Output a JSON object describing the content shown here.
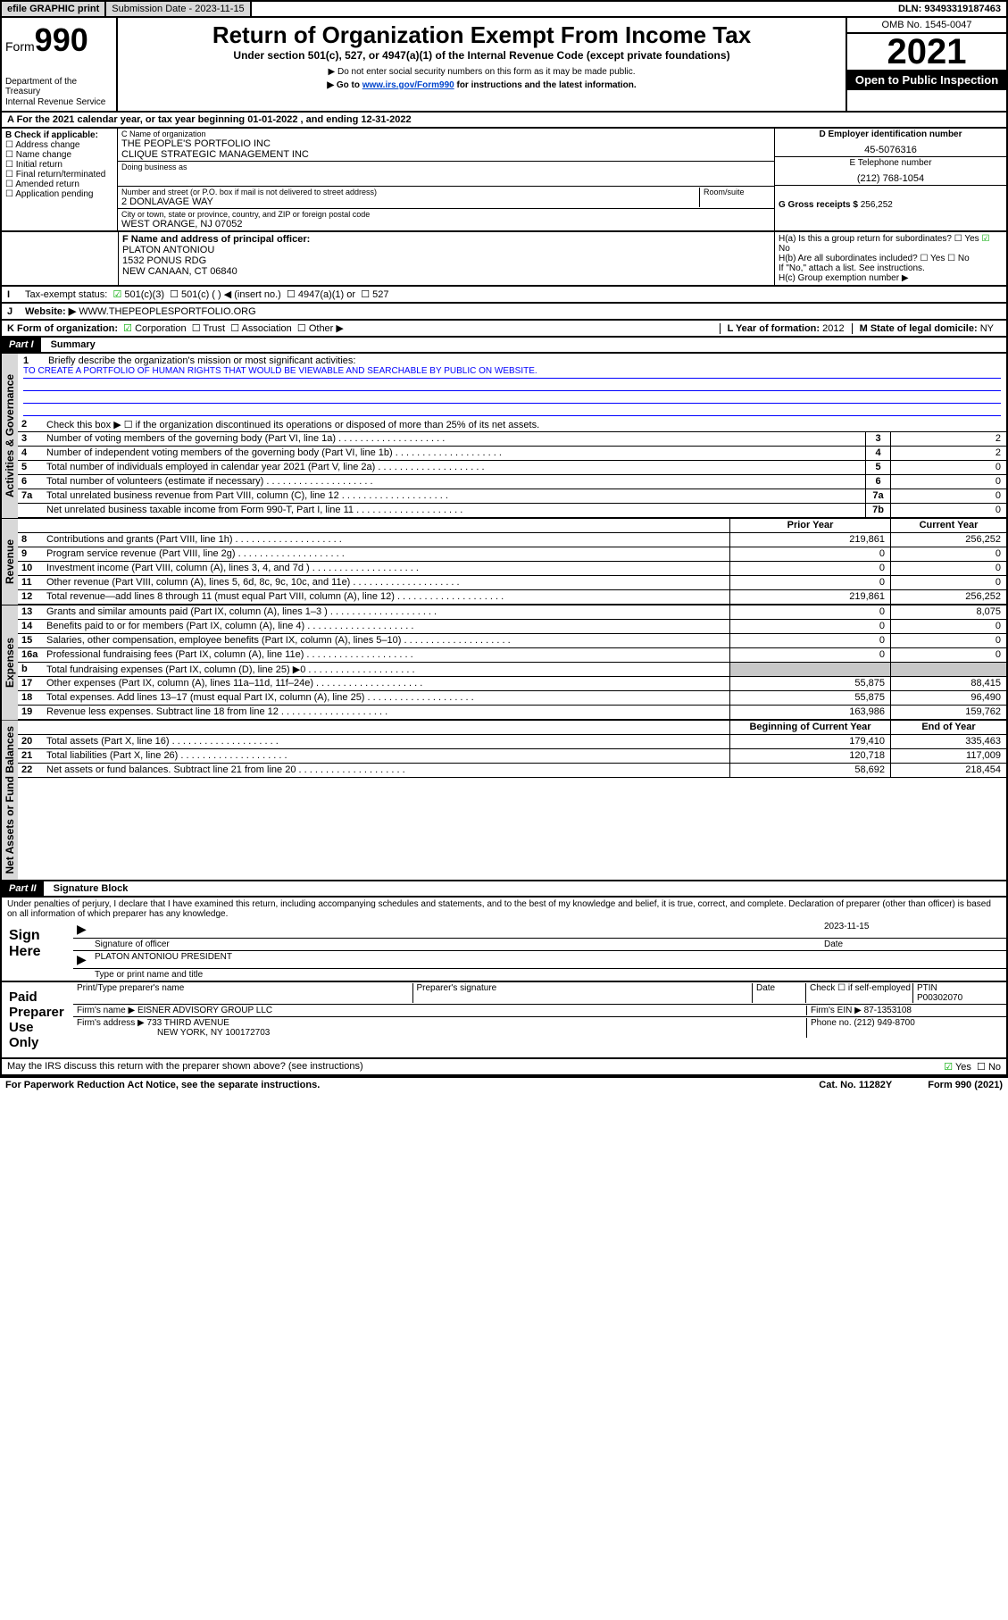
{
  "topbar": {
    "efile": "efile GRAPHIC print",
    "submission_label": "Submission Date - 2023-11-15",
    "dln": "DLN: 93493319187463"
  },
  "header": {
    "form_label": "Form",
    "form_number": "990",
    "dept": "Department of the Treasury",
    "irs": "Internal Revenue Service",
    "title": "Return of Organization Exempt From Income Tax",
    "subtitle": "Under section 501(c), 527, or 4947(a)(1) of the Internal Revenue Code (except private foundations)",
    "note1": "Do not enter social security numbers on this form as it may be made public.",
    "note2_pre": "Go to ",
    "note2_link": "www.irs.gov/Form990",
    "note2_post": " for instructions and the latest information.",
    "omb": "OMB No. 1545-0047",
    "year": "2021",
    "open": "Open to Public Inspection"
  },
  "rowA": "A For the 2021 calendar year, or tax year beginning 01-01-2022  , and ending 12-31-2022",
  "B": {
    "label": "B Check if applicable:",
    "items": [
      "Address change",
      "Name change",
      "Initial return",
      "Final return/terminated",
      "Amended return",
      "Application pending"
    ]
  },
  "C": {
    "name_label": "C Name of organization",
    "name1": "THE PEOPLE'S PORTFOLIO INC",
    "name2": "CLIQUE STRATEGIC MANAGEMENT INC",
    "dba_label": "Doing business as",
    "addr_label": "Number and street (or P.O. box if mail is not delivered to street address)",
    "room_label": "Room/suite",
    "addr": "2 DONLAVAGE WAY",
    "city_label": "City or town, state or province, country, and ZIP or foreign postal code",
    "city": "WEST ORANGE, NJ  07052"
  },
  "D": {
    "label": "D Employer identification number",
    "value": "45-5076316"
  },
  "E": {
    "label": "E Telephone number",
    "value": "(212) 768-1054"
  },
  "G": {
    "label": "G Gross receipts $",
    "value": "256,252"
  },
  "F": {
    "label": "F Name and address of principal officer:",
    "name": "PLATON ANTONIOU",
    "addr1": "1532 PONUS RDG",
    "addr2": "NEW CANAAN, CT  06840"
  },
  "H": {
    "a": "H(a)  Is this a group return for subordinates?",
    "b": "H(b)  Are all subordinates included?",
    "b_note": "If \"No,\" attach a list. See instructions.",
    "c": "H(c)  Group exemption number ▶",
    "yes": "Yes",
    "no": "No"
  },
  "I": {
    "label": "Tax-exempt status:",
    "opts": [
      "501(c)(3)",
      "501(c) (  ) ◀ (insert no.)",
      "4947(a)(1) or",
      "527"
    ]
  },
  "J": {
    "label": "Website: ▶",
    "value": "WWW.THEPEOPLESPORTFOLIO.ORG"
  },
  "K": {
    "label": "K Form of organization:",
    "opts": [
      "Corporation",
      "Trust",
      "Association",
      "Other ▶"
    ]
  },
  "L": {
    "label": "L Year of formation:",
    "value": "2012"
  },
  "M": {
    "label": "M State of legal domicile:",
    "value": "NY"
  },
  "part1": {
    "title": "Part I",
    "heading": "Summary",
    "tab1": "Activities & Governance",
    "tab2": "Revenue",
    "tab3": "Expenses",
    "tab4": "Net Assets or Fund Balances",
    "line1_label": "Briefly describe the organization's mission or most significant activities:",
    "mission": "TO CREATE A PORTFOLIO OF HUMAN RIGHTS THAT WOULD BE VIEWABLE AND SEARCHABLE BY PUBLIC ON WEBSITE.",
    "line2": "Check this box ▶ ☐  if the organization discontinued its operations or disposed of more than 25% of its net assets.",
    "lines_gov": [
      {
        "n": "3",
        "d": "Number of voting members of the governing body (Part VI, line 1a)",
        "b": "3",
        "v": "2"
      },
      {
        "n": "4",
        "d": "Number of independent voting members of the governing body (Part VI, line 1b)",
        "b": "4",
        "v": "2"
      },
      {
        "n": "5",
        "d": "Total number of individuals employed in calendar year 2021 (Part V, line 2a)",
        "b": "5",
        "v": "0"
      },
      {
        "n": "6",
        "d": "Total number of volunteers (estimate if necessary)",
        "b": "6",
        "v": "0"
      },
      {
        "n": "7a",
        "d": "Total unrelated business revenue from Part VIII, column (C), line 12",
        "b": "7a",
        "v": "0"
      },
      {
        "n": "",
        "d": "Net unrelated business taxable income from Form 990-T, Part I, line 11",
        "b": "7b",
        "v": "0"
      }
    ],
    "col_prior": "Prior Year",
    "col_current": "Current Year",
    "lines_rev": [
      {
        "n": "8",
        "d": "Contributions and grants (Part VIII, line 1h)",
        "p": "219,861",
        "c": "256,252"
      },
      {
        "n": "9",
        "d": "Program service revenue (Part VIII, line 2g)",
        "p": "0",
        "c": "0"
      },
      {
        "n": "10",
        "d": "Investment income (Part VIII, column (A), lines 3, 4, and 7d )",
        "p": "0",
        "c": "0"
      },
      {
        "n": "11",
        "d": "Other revenue (Part VIII, column (A), lines 5, 6d, 8c, 9c, 10c, and 11e)",
        "p": "0",
        "c": "0"
      },
      {
        "n": "12",
        "d": "Total revenue—add lines 8 through 11 (must equal Part VIII, column (A), line 12)",
        "p": "219,861",
        "c": "256,252"
      }
    ],
    "lines_exp": [
      {
        "n": "13",
        "d": "Grants and similar amounts paid (Part IX, column (A), lines 1–3 )",
        "p": "0",
        "c": "8,075"
      },
      {
        "n": "14",
        "d": "Benefits paid to or for members (Part IX, column (A), line 4)",
        "p": "0",
        "c": "0"
      },
      {
        "n": "15",
        "d": "Salaries, other compensation, employee benefits (Part IX, column (A), lines 5–10)",
        "p": "0",
        "c": "0"
      },
      {
        "n": "16a",
        "d": "Professional fundraising fees (Part IX, column (A), line 11e)",
        "p": "0",
        "c": "0"
      },
      {
        "n": "b",
        "d": "Total fundraising expenses (Part IX, column (D), line 25) ▶0",
        "p": "",
        "c": "",
        "shade": true
      },
      {
        "n": "17",
        "d": "Other expenses (Part IX, column (A), lines 11a–11d, 11f–24e)",
        "p": "55,875",
        "c": "88,415"
      },
      {
        "n": "18",
        "d": "Total expenses. Add lines 13–17 (must equal Part IX, column (A), line 25)",
        "p": "55,875",
        "c": "96,490"
      },
      {
        "n": "19",
        "d": "Revenue less expenses. Subtract line 18 from line 12",
        "p": "163,986",
        "c": "159,762"
      }
    ],
    "col_boy": "Beginning of Current Year",
    "col_eoy": "End of Year",
    "lines_net": [
      {
        "n": "20",
        "d": "Total assets (Part X, line 16)",
        "p": "179,410",
        "c": "335,463"
      },
      {
        "n": "21",
        "d": "Total liabilities (Part X, line 26)",
        "p": "120,718",
        "c": "117,009"
      },
      {
        "n": "22",
        "d": "Net assets or fund balances. Subtract line 21 from line 20",
        "p": "58,692",
        "c": "218,454"
      }
    ]
  },
  "part2": {
    "title": "Part II",
    "heading": "Signature Block",
    "perjury": "Under penalties of perjury, I declare that I have examined this return, including accompanying schedules and statements, and to the best of my knowledge and belief, it is true, correct, and complete. Declaration of preparer (other than officer) is based on all information of which preparer has any knowledge.",
    "sign_here": "Sign Here",
    "sig_officer": "Signature of officer",
    "sig_date": "Date",
    "sig_date_val": "2023-11-15",
    "officer_name": "PLATON ANTONIOU PRESIDENT",
    "type_name": "Type or print name and title",
    "paid": "Paid Preparer Use Only",
    "prep_name": "Print/Type preparer's name",
    "prep_sig": "Preparer's signature",
    "prep_date": "Date",
    "prep_check": "Check ☐ if self-employed",
    "ptin_label": "PTIN",
    "ptin": "P00302070",
    "firm_name_label": "Firm's name    ▶",
    "firm_name": "EISNER ADVISORY GROUP LLC",
    "firm_ein_label": "Firm's EIN ▶",
    "firm_ein": "87-1353108",
    "firm_addr_label": "Firm's address ▶",
    "firm_addr1": "733 THIRD AVENUE",
    "firm_addr2": "NEW YORK, NY  100172703",
    "phone_label": "Phone no.",
    "phone": "(212) 949-8700",
    "discuss": "May the IRS discuss this return with the preparer shown above? (see instructions)",
    "discuss_yes": "Yes",
    "discuss_no": "No"
  },
  "footer": {
    "paperwork": "For Paperwork Reduction Act Notice, see the separate instructions.",
    "cat": "Cat. No. 11282Y",
    "form": "Form 990 (2021)"
  },
  "colors": {
    "link": "#0044cc",
    "shade": "#c8c8c8"
  }
}
